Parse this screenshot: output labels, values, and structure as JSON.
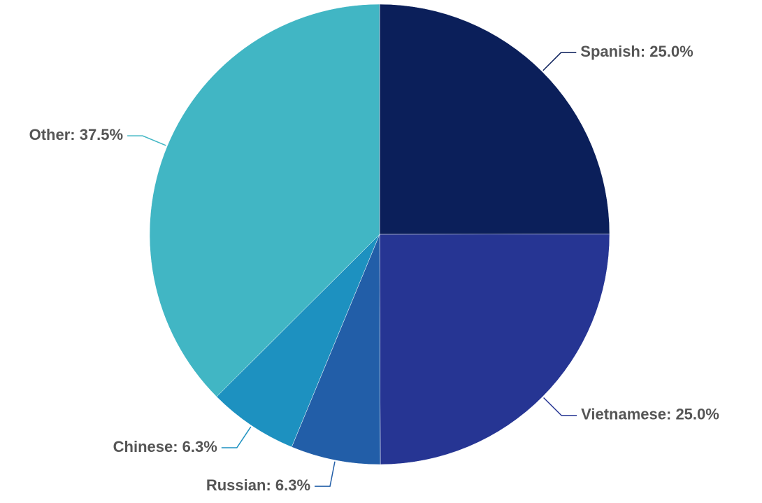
{
  "chart_data": {
    "type": "pie",
    "values": [
      25.0,
      25.0,
      6.3,
      6.3,
      37.5
    ],
    "value_labels": [
      "Spanish: 25.0%",
      "Vietnamese: 25.0%",
      "Russian: 6.3%",
      "Chinese: 6.3%",
      "Other: 37.5%"
    ],
    "colors": [
      "#0b1f5a",
      "#263593",
      "#225ea8",
      "#1d91c0",
      "#41b6c4"
    ]
  }
}
